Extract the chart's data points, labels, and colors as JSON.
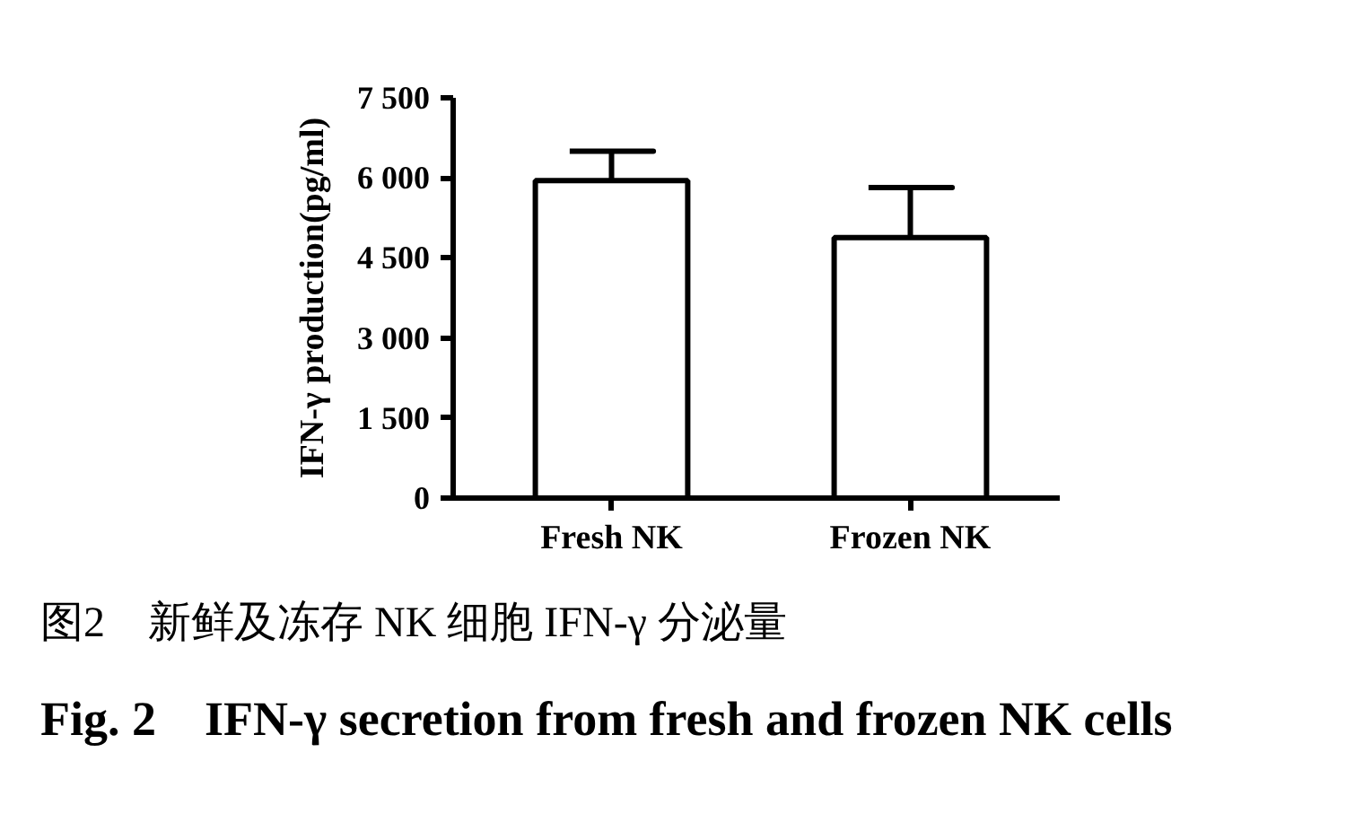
{
  "chart_data": {
    "type": "bar",
    "title": "图2　新鲜及冻存 NK 细胞 IFN-γ 分泌量",
    "subtitle": "Fig. 2　IFN-γ secretion from fresh and frozen NK cells",
    "ylabel": "IFN-γ production(pg/ml)",
    "categories": [
      "Fresh NK",
      "Frozen NK"
    ],
    "values": [
      5950,
      4880
    ],
    "errors": [
      [
        5950,
        6500
      ],
      [
        4880,
        5820
      ]
    ],
    "color": "#ffffff",
    "ylim": [
      0,
      7500
    ],
    "yticks": [
      0,
      {
        "value": 1500,
        "label": "1 500"
      },
      {
        "value": 3000,
        "label": "3 000"
      },
      {
        "value": 4500,
        "label": "4 500"
      },
      {
        "value": 6000,
        "label": "6 000"
      },
      {
        "value": 7500,
        "label": "7 500"
      }
    ]
  }
}
